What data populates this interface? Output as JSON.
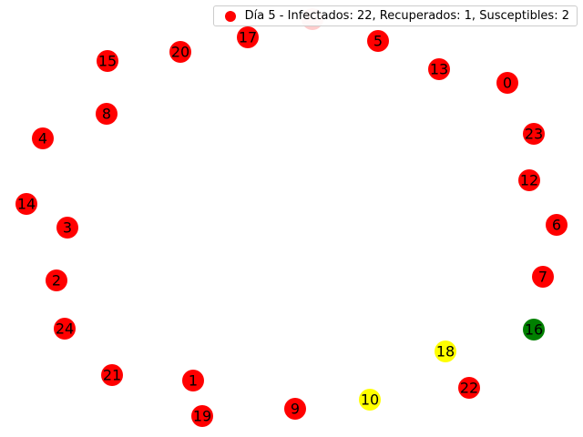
{
  "colors": {
    "infected": "#ff0000",
    "recovered": "#008000",
    "susceptible": "#ffff00",
    "highlight": "#ffcccc"
  },
  "legend": {
    "label": "Día 5 - Infectados: 22, Recuperados: 1, Susceptibles: 2",
    "marker_color": "#ff0000"
  },
  "nodes": [
    {
      "id": "0",
      "state": "infected"
    },
    {
      "id": "1",
      "state": "infected"
    },
    {
      "id": "2",
      "state": "infected"
    },
    {
      "id": "3",
      "state": "infected"
    },
    {
      "id": "4",
      "state": "infected"
    },
    {
      "id": "5",
      "state": "infected"
    },
    {
      "id": "6",
      "state": "infected"
    },
    {
      "id": "7",
      "state": "infected"
    },
    {
      "id": "8",
      "state": "infected"
    },
    {
      "id": "9",
      "state": "infected"
    },
    {
      "id": "10",
      "state": "susceptible"
    },
    {
      "id": "12",
      "state": "infected"
    },
    {
      "id": "13",
      "state": "infected"
    },
    {
      "id": "14",
      "state": "infected"
    },
    {
      "id": "15",
      "state": "infected"
    },
    {
      "id": "16",
      "state": "recovered"
    },
    {
      "id": "17",
      "state": "infected"
    },
    {
      "id": "18",
      "state": "susceptible"
    },
    {
      "id": "19",
      "state": "infected"
    },
    {
      "id": "20",
      "state": "infected"
    },
    {
      "id": "21",
      "state": "infected"
    },
    {
      "id": "22",
      "state": "infected"
    },
    {
      "id": "23",
      "state": "infected"
    },
    {
      "id": "24",
      "state": "infected"
    },
    {
      "id": "",
      "state": "highlight"
    }
  ]
}
